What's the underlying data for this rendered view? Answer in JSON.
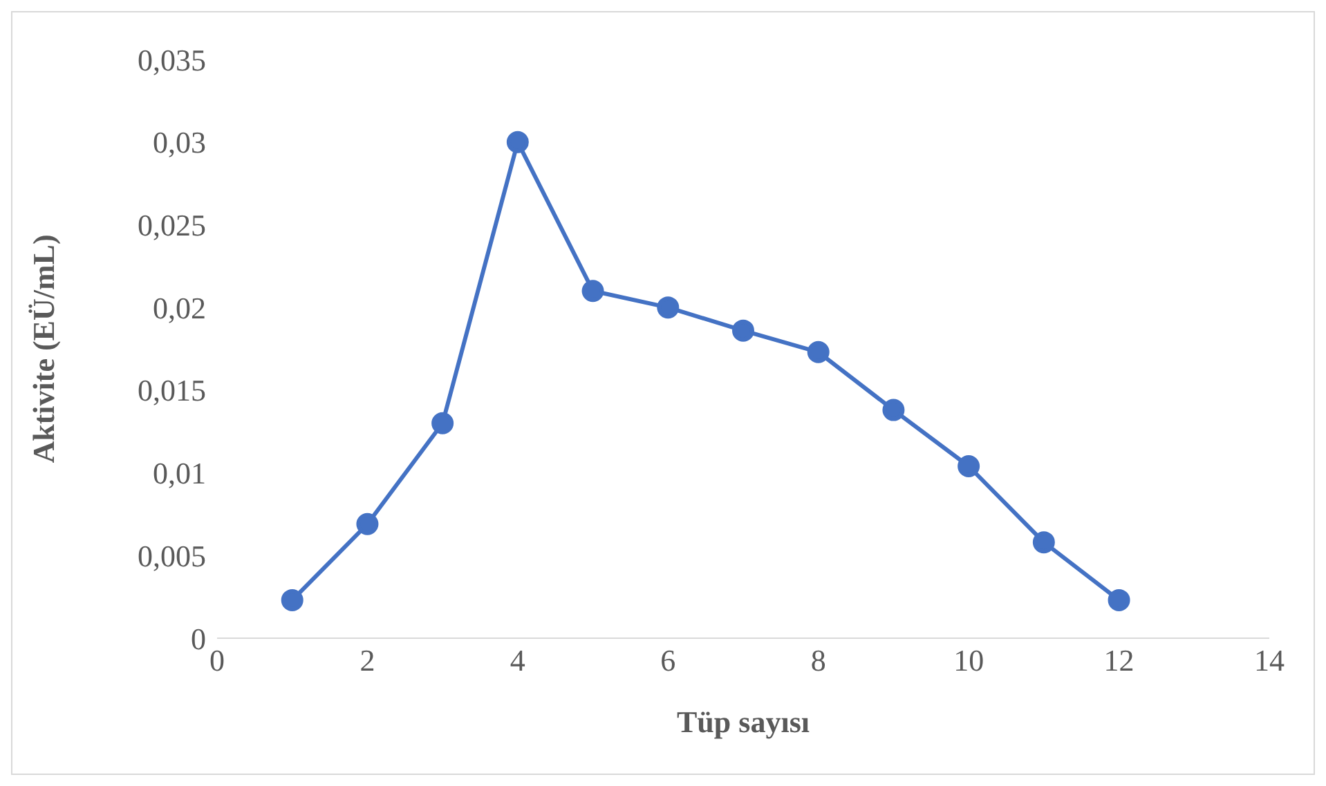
{
  "chart_data": {
    "type": "line",
    "xlabel": "Tüp sayısı",
    "ylabel": "Aktivite (EÜ/mL)",
    "x": [
      1,
      2,
      3,
      4,
      5,
      6,
      7,
      8,
      9,
      10,
      11,
      12
    ],
    "series": [
      {
        "color": "#4472c4",
        "values": [
          0.0023,
          0.0069,
          0.013,
          0.03,
          0.021,
          0.02,
          0.0186,
          0.0173,
          0.0138,
          0.0104,
          0.0058,
          0.0023
        ]
      }
    ],
    "xlim": [
      0,
      14
    ],
    "xticks": [
      0,
      2,
      4,
      6,
      8,
      10,
      12,
      14
    ],
    "ylim": [
      0,
      0.035
    ],
    "yticks": [
      {
        "value": 0,
        "label": "0"
      },
      {
        "value": 0.005,
        "label": "0,005"
      },
      {
        "value": 0.01,
        "label": "0,01"
      },
      {
        "value": 0.015,
        "label": "0,015"
      },
      {
        "value": 0.02,
        "label": "0,02"
      },
      {
        "value": 0.025,
        "label": "0,025"
      },
      {
        "value": 0.03,
        "label": "0,03"
      },
      {
        "value": 0.035,
        "label": "0,035"
      }
    ],
    "grid": false,
    "legend": false,
    "marker": "circle",
    "line_style": "solid"
  }
}
